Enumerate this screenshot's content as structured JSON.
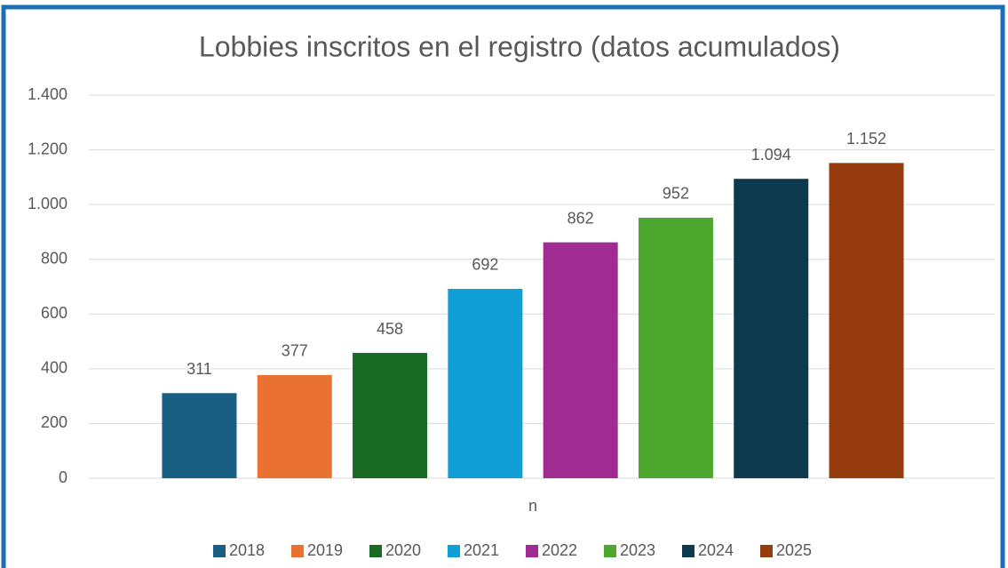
{
  "chart_data": {
    "type": "bar",
    "title": "Lobbies inscritos en el registro (datos acumulados)",
    "categories": [
      "n"
    ],
    "series": [
      {
        "name": "2018",
        "color": "#195e83",
        "values": [
          311
        ],
        "value_labels": [
          "311"
        ]
      },
      {
        "name": "2019",
        "color": "#e97132",
        "values": [
          377
        ],
        "value_labels": [
          "377"
        ]
      },
      {
        "name": "2020",
        "color": "#196b24",
        "values": [
          458
        ],
        "value_labels": [
          "458"
        ]
      },
      {
        "name": "2021",
        "color": "#0f9ed5",
        "values": [
          692
        ],
        "value_labels": [
          "692"
        ]
      },
      {
        "name": "2022",
        "color": "#a02b93",
        "values": [
          862
        ],
        "value_labels": [
          "862"
        ]
      },
      {
        "name": "2023",
        "color": "#4ea72e",
        "values": [
          952
        ],
        "value_labels": [
          "952"
        ]
      },
      {
        "name": "2024",
        "color": "#0e3a4f",
        "values": [
          1094
        ],
        "value_labels": [
          "1.094"
        ]
      },
      {
        "name": "2025",
        "color": "#963c0f",
        "values": [
          1152
        ],
        "value_labels": [
          "1.152"
        ]
      }
    ],
    "ylim": [
      0,
      1400
    ],
    "yticks": [
      0,
      200,
      400,
      600,
      800,
      {
        "value": 1000,
        "label": "1.000"
      },
      {
        "value": 1200,
        "label": "1.200"
      },
      {
        "value": 1400,
        "label": "1.400"
      }
    ],
    "grid": true,
    "legend": "bottom"
  }
}
